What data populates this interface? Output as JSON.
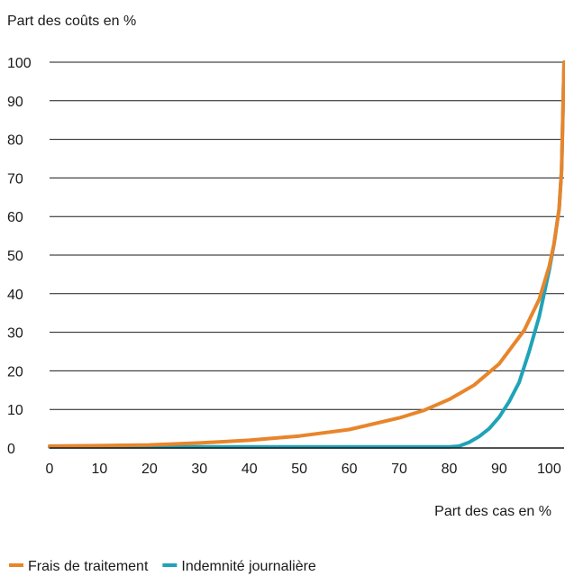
{
  "chart_data": {
    "type": "line",
    "ylabel": "Part des coûts en %",
    "xlabel": "Part des cas en %",
    "xlim": [
      0,
      103
    ],
    "ylim": [
      0,
      100
    ],
    "x_ticks": [
      0,
      10,
      20,
      30,
      40,
      50,
      60,
      70,
      80,
      90,
      100
    ],
    "y_ticks": [
      0,
      10,
      20,
      30,
      40,
      50,
      60,
      70,
      80,
      90,
      100
    ],
    "grid": "horizontal",
    "legend_position": "bottom-left",
    "series": [
      {
        "name": "Frais de traitement",
        "color": "#e8852b",
        "points": [
          [
            0,
            0.5
          ],
          [
            10,
            0.6
          ],
          [
            20,
            0.8
          ],
          [
            30,
            1.3
          ],
          [
            40,
            2.0
          ],
          [
            50,
            3.1
          ],
          [
            60,
            4.8
          ],
          [
            70,
            7.8
          ],
          [
            75,
            9.8
          ],
          [
            80,
            12.6
          ],
          [
            85,
            16.3
          ],
          [
            90,
            21.8
          ],
          [
            95,
            30.5
          ],
          [
            98,
            38.5
          ],
          [
            100,
            47.0
          ],
          [
            101,
            53.0
          ],
          [
            102,
            62.0
          ],
          [
            102.5,
            72.0
          ],
          [
            103,
            100
          ]
        ]
      },
      {
        "name": "Indemnité journalière",
        "color": "#1fa3b8",
        "points": [
          [
            0,
            0.3
          ],
          [
            10,
            0.3
          ],
          [
            20,
            0.3
          ],
          [
            30,
            0.3
          ],
          [
            40,
            0.3
          ],
          [
            50,
            0.3
          ],
          [
            60,
            0.3
          ],
          [
            70,
            0.3
          ],
          [
            80,
            0.3
          ],
          [
            82,
            0.5
          ],
          [
            84,
            1.5
          ],
          [
            86,
            3.0
          ],
          [
            88,
            5.0
          ],
          [
            90,
            8.0
          ],
          [
            92,
            12.0
          ],
          [
            94,
            17.0
          ],
          [
            96,
            25.0
          ],
          [
            98,
            34.0
          ],
          [
            100,
            46.0
          ],
          [
            101,
            53.0
          ],
          [
            102,
            62.0
          ],
          [
            102.5,
            72.0
          ],
          [
            103,
            100
          ]
        ]
      }
    ]
  }
}
